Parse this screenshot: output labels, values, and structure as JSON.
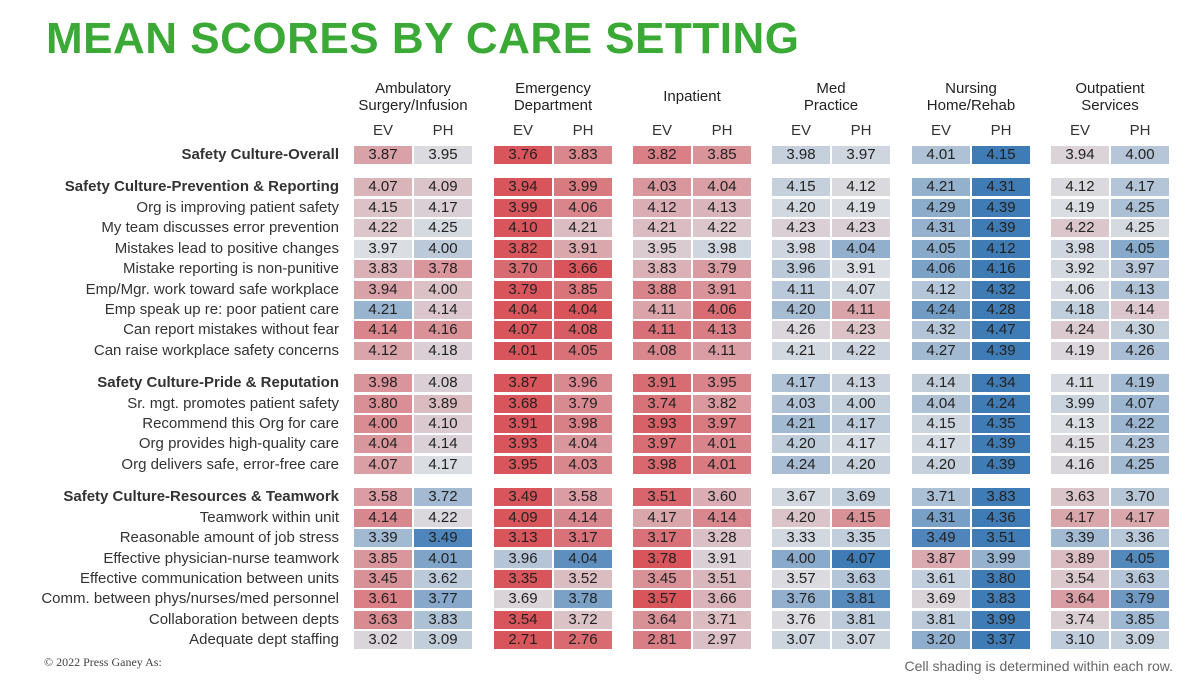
{
  "title": "MEAN SCORES BY CARE SETTING",
  "copyright": "© 2022 Press Ganey As:",
  "footnote": "Cell shading is determined within each row.",
  "colors": {
    "title": "#3ba935",
    "low": "#d8555c",
    "high": "#3f7bb5",
    "neutral": "#dadde2"
  },
  "chart_data": {
    "type": "heatmap",
    "title": "MEAN SCORES BY CARE SETTING",
    "settings": [
      {
        "lines": [
          "Ambulatory",
          "Surgery/Infusion"
        ],
        "columns": [
          "EV",
          "PH"
        ]
      },
      {
        "lines": [
          "Emergency",
          "Department"
        ],
        "columns": [
          "EV",
          "PH"
        ]
      },
      {
        "lines": [
          "Inpatient"
        ],
        "columns": [
          "EV",
          "PH"
        ]
      },
      {
        "lines": [
          "Med",
          "Practice"
        ],
        "columns": [
          "EV",
          "PH"
        ]
      },
      {
        "lines": [
          "Nursing",
          "Home/Rehab"
        ],
        "columns": [
          "EV",
          "PH"
        ]
      },
      {
        "lines": [
          "Outpatient",
          "Services"
        ],
        "columns": [
          "EV",
          "PH"
        ]
      }
    ],
    "groups": [
      {
        "rows": [
          {
            "label": "Safety Culture-Overall",
            "bold": true,
            "values": [
              3.87,
              3.95,
              3.76,
              3.83,
              3.82,
              3.85,
              3.98,
              3.97,
              4.01,
              4.15,
              3.94,
              4.0
            ]
          }
        ]
      },
      {
        "rows": [
          {
            "label": "Safety Culture-Prevention & Reporting",
            "bold": true,
            "values": [
              4.07,
              4.09,
              3.94,
              3.99,
              4.03,
              4.04,
              4.15,
              4.12,
              4.21,
              4.31,
              4.12,
              4.17
            ]
          },
          {
            "label": "Org is improving patient safety",
            "bold": false,
            "values": [
              4.15,
              4.17,
              3.99,
              4.06,
              4.12,
              4.13,
              4.2,
              4.19,
              4.29,
              4.39,
              4.19,
              4.25
            ]
          },
          {
            "label": "My team discusses error prevention",
            "bold": false,
            "values": [
              4.22,
              4.25,
              4.1,
              4.21,
              4.21,
              4.22,
              4.23,
              4.23,
              4.31,
              4.39,
              4.22,
              4.25
            ]
          },
          {
            "label": "Mistakes lead to positive changes",
            "bold": false,
            "values": [
              3.97,
              4.0,
              3.82,
              3.91,
              3.95,
              3.98,
              3.98,
              4.04,
              4.05,
              4.12,
              3.98,
              4.05
            ]
          },
          {
            "label": "Mistake reporting is non-punitive",
            "bold": false,
            "values": [
              3.83,
              3.78,
              3.7,
              3.66,
              3.83,
              3.79,
              3.96,
              3.91,
              4.06,
              4.16,
              3.92,
              3.97
            ]
          },
          {
            "label": "Emp/Mgr. work toward safe workplace",
            "bold": false,
            "values": [
              3.94,
              4.0,
              3.79,
              3.85,
              3.88,
              3.91,
              4.11,
              4.07,
              4.12,
              4.32,
              4.06,
              4.13
            ]
          },
          {
            "label": "Emp speak up re: poor patient care",
            "bold": false,
            "values": [
              4.21,
              4.14,
              4.04,
              4.04,
              4.11,
              4.06,
              4.2,
              4.11,
              4.24,
              4.28,
              4.18,
              4.14
            ]
          },
          {
            "label": "Can report mistakes without fear",
            "bold": false,
            "values": [
              4.14,
              4.16,
              4.07,
              4.08,
              4.11,
              4.13,
              4.26,
              4.23,
              4.32,
              4.47,
              4.24,
              4.3
            ]
          },
          {
            "label": "Can raise workplace safety concerns",
            "bold": false,
            "values": [
              4.12,
              4.18,
              4.01,
              4.05,
              4.08,
              4.11,
              4.21,
              4.22,
              4.27,
              4.39,
              4.19,
              4.26
            ]
          }
        ]
      },
      {
        "rows": [
          {
            "label": "Safety Culture-Pride & Reputation",
            "bold": true,
            "values": [
              3.98,
              4.08,
              3.87,
              3.96,
              3.91,
              3.95,
              4.17,
              4.13,
              4.14,
              4.34,
              4.11,
              4.19
            ]
          },
          {
            "label": "Sr. mgt. promotes patient safety",
            "bold": false,
            "values": [
              3.8,
              3.89,
              3.68,
              3.79,
              3.74,
              3.82,
              4.03,
              4.0,
              4.04,
              4.24,
              3.99,
              4.07
            ]
          },
          {
            "label": "Recommend this Org for care",
            "bold": false,
            "values": [
              4.0,
              4.1,
              3.91,
              3.98,
              3.93,
              3.97,
              4.21,
              4.17,
              4.15,
              4.35,
              4.13,
              4.22
            ]
          },
          {
            "label": "Org provides high-quality care",
            "bold": false,
            "values": [
              4.04,
              4.14,
              3.93,
              4.04,
              3.97,
              4.01,
              4.2,
              4.17,
              4.17,
              4.39,
              4.15,
              4.23
            ]
          },
          {
            "label": "Org delivers safe, error-free care",
            "bold": false,
            "values": [
              4.07,
              4.17,
              3.95,
              4.03,
              3.98,
              4.01,
              4.24,
              4.2,
              4.2,
              4.39,
              4.16,
              4.25
            ]
          }
        ]
      },
      {
        "rows": [
          {
            "label": "Safety Culture-Resources & Teamwork",
            "bold": true,
            "values": [
              3.58,
              3.72,
              3.49,
              3.58,
              3.51,
              3.6,
              3.67,
              3.69,
              3.71,
              3.83,
              3.63,
              3.7
            ]
          },
          {
            "label": "Teamwork within unit",
            "bold": false,
            "values": [
              4.14,
              4.22,
              4.09,
              4.14,
              4.17,
              4.14,
              4.2,
              4.15,
              4.31,
              4.36,
              4.17,
              4.17
            ]
          },
          {
            "label": "Reasonable amount of job stress",
            "bold": false,
            "values": [
              3.39,
              3.49,
              3.13,
              3.17,
              3.17,
              3.28,
              3.33,
              3.35,
              3.49,
              3.51,
              3.39,
              3.36
            ]
          },
          {
            "label": "Effective physician-nurse teamwork",
            "bold": false,
            "values": [
              3.85,
              4.01,
              3.96,
              4.04,
              3.78,
              3.91,
              4.0,
              4.07,
              3.87,
              3.99,
              3.89,
              4.05
            ]
          },
          {
            "label": "Effective communication between units",
            "bold": false,
            "values": [
              3.45,
              3.62,
              3.35,
              3.52,
              3.45,
              3.51,
              3.57,
              3.63,
              3.61,
              3.8,
              3.54,
              3.63
            ]
          },
          {
            "label": "Comm. between phys/nurses/med personnel",
            "bold": false,
            "values": [
              3.61,
              3.77,
              3.69,
              3.78,
              3.57,
              3.66,
              3.76,
              3.81,
              3.69,
              3.83,
              3.64,
              3.79
            ]
          },
          {
            "label": "Collaboration between depts",
            "bold": false,
            "values": [
              3.63,
              3.83,
              3.54,
              3.72,
              3.64,
              3.71,
              3.76,
              3.81,
              3.81,
              3.99,
              3.74,
              3.85
            ]
          },
          {
            "label": "Adequate dept staffing",
            "bold": false,
            "values": [
              3.02,
              3.09,
              2.71,
              2.76,
              2.81,
              2.97,
              3.07,
              3.07,
              3.2,
              3.37,
              3.1,
              3.09
            ]
          }
        ]
      }
    ],
    "shading": "within each row"
  }
}
